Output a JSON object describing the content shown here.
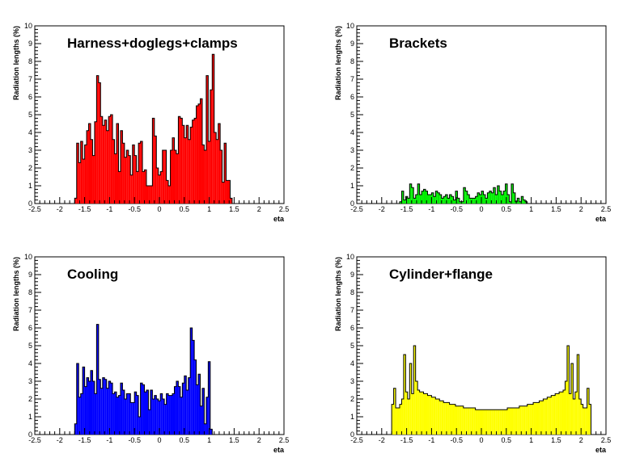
{
  "chart_data": [
    {
      "type": "bar",
      "title": "Harness+doglegs+clamps",
      "xlabel": "eta",
      "ylabel": "Radiation lengths (%)",
      "xlim": [
        -2.5,
        2.5
      ],
      "ylim": [
        0,
        10
      ],
      "x_ticks": [
        "-2.5",
        "-2",
        "-1.5",
        "-1",
        "-0.5",
        "0",
        "0.5",
        "1",
        "1.5",
        "2",
        "2.5"
      ],
      "y_ticks": [
        "0",
        "1",
        "2",
        "3",
        "4",
        "5",
        "6",
        "7",
        "8",
        "9",
        "10"
      ],
      "color": "#ff0000",
      "bin_start": -1.7,
      "bin_width": 0.04,
      "values": [
        0.3,
        3.4,
        2.3,
        3.5,
        2.5,
        3.3,
        4.1,
        4.5,
        3.6,
        2.7,
        4.6,
        7.2,
        6.8,
        4.9,
        4.4,
        4.7,
        4.1,
        4.9,
        5.0,
        3.6,
        2.8,
        4.5,
        1.8,
        4.1,
        3.4,
        2.6,
        3.0,
        2.7,
        1.6,
        3.3,
        2.7,
        1.8,
        3.4,
        3.5,
        1.8,
        1.9,
        1.0,
        1.0,
        1.0,
        4.8,
        3.8,
        2.0,
        1.6,
        1.8,
        3.0,
        3.0,
        1.3,
        1.0,
        3.0,
        3.7,
        3.0,
        2.8,
        4.9,
        4.8,
        4.4,
        3.7,
        4.4,
        3.6,
        4.3,
        4.7,
        4.8,
        5.5,
        5.6,
        5.9,
        3.3,
        3.0,
        7.2,
        3.5,
        6.4,
        8.4,
        4.0,
        3.6,
        4.5,
        3.0,
        1.2,
        3.4,
        1.3,
        1.3,
        0.3
      ]
    },
    {
      "type": "bar",
      "title": "Brackets",
      "xlabel": "eta",
      "ylabel": "Radiation lengths (%)",
      "xlim": [
        -2.5,
        2.5
      ],
      "ylim": [
        0,
        10
      ],
      "x_ticks": [
        "-2.5",
        "-2",
        "-1.5",
        "-1",
        "-0.5",
        "0",
        "0.5",
        "1",
        "1.5",
        "2",
        "2.5"
      ],
      "y_ticks": [
        "0",
        "1",
        "2",
        "3",
        "4",
        "5",
        "6",
        "7",
        "8",
        "9",
        "10"
      ],
      "color": "#00ee00",
      "bin_start": -1.64,
      "bin_width": 0.04,
      "values": [
        0.1,
        0.7,
        0.2,
        0.4,
        0.3,
        1.1,
        0.9,
        0.3,
        0.5,
        1.1,
        0.5,
        0.7,
        0.8,
        0.7,
        0.5,
        0.5,
        0.6,
        0.4,
        0.7,
        0.6,
        0.5,
        0.3,
        0.4,
        0.5,
        0.3,
        0.5,
        0.4,
        0.2,
        0.7,
        0.3,
        0.1,
        0.1,
        0.9,
        0.7,
        0.5,
        0.3,
        0.3,
        0.3,
        0.4,
        0.6,
        0.5,
        0.7,
        0.5,
        0.3,
        0.6,
        0.7,
        0.6,
        0.9,
        0.5,
        1.0,
        0.7,
        0.5,
        0.7,
        1.1,
        0.5,
        0.1,
        1.1,
        0.6,
        0.1,
        0.3,
        0.1,
        0.4,
        0.2,
        0.1
      ]
    },
    {
      "type": "bar",
      "title": "Cooling",
      "xlabel": "eta",
      "ylabel": "Radiation lengths (%)",
      "xlim": [
        -2.5,
        2.5
      ],
      "ylim": [
        0,
        10
      ],
      "x_ticks": [
        "-2.5",
        "-2",
        "-1.5",
        "-1",
        "-0.5",
        "0",
        "0.5",
        "1",
        "1.5",
        "2",
        "2.5"
      ],
      "y_ticks": [
        "0",
        "1",
        "2",
        "3",
        "4",
        "5",
        "6",
        "7",
        "8",
        "9",
        "10"
      ],
      "color": "#0000ff",
      "bin_start": -1.7,
      "bin_width": 0.04,
      "values": [
        0.6,
        4.0,
        2.1,
        2.3,
        3.8,
        2.7,
        3.2,
        3.0,
        3.6,
        3.0,
        2.3,
        6.2,
        3.1,
        2.6,
        3.2,
        3.1,
        2.6,
        3.0,
        2.9,
        2.3,
        2.4,
        2.1,
        2.2,
        2.9,
        2.5,
        2.0,
        2.3,
        2.3,
        1.8,
        1.8,
        2.4,
        2.2,
        1.0,
        2.9,
        2.8,
        2.4,
        2.5,
        1.4,
        2.5,
        2.0,
        2.2,
        2.0,
        1.9,
        2.3,
        2.0,
        1.7,
        2.3,
        2.2,
        2.2,
        2.3,
        2.7,
        3.0,
        2.7,
        2.1,
        2.9,
        3.3,
        2.5,
        3.2,
        6.0,
        5.3,
        4.2,
        2.8,
        3.4,
        1.6,
        2.6,
        0.6,
        2.1,
        4.1,
        0.3
      ]
    },
    {
      "type": "bar",
      "title": "Cylinder+flange",
      "xlabel": "eta",
      "ylabel": "Radiation lengths (%)",
      "xlim": [
        -2.5,
        2.5
      ],
      "ylim": [
        0,
        10
      ],
      "x_ticks": [
        "-2.5",
        "-2",
        "-1.5",
        "-1",
        "-0.5",
        "0",
        "0.5",
        "1",
        "1.5",
        "2",
        "2.5"
      ],
      "y_ticks": [
        "0",
        "1",
        "2",
        "3",
        "4",
        "5",
        "6",
        "7",
        "8",
        "9",
        "10"
      ],
      "color": "#ffff00",
      "bin_start": -1.8,
      "bin_width": 0.04,
      "values": [
        1.7,
        2.6,
        1.5,
        1.5,
        1.7,
        2.0,
        4.5,
        2.4,
        2.0,
        4.0,
        2.3,
        5.0,
        3.0,
        2.5,
        2.4,
        2.4,
        2.3,
        2.3,
        2.2,
        2.2,
        2.1,
        2.1,
        2.0,
        2.0,
        1.9,
        1.9,
        1.8,
        1.8,
        1.8,
        1.7,
        1.7,
        1.7,
        1.6,
        1.6,
        1.6,
        1.6,
        1.5,
        1.5,
        1.5,
        1.5,
        1.5,
        1.5,
        1.4,
        1.4,
        1.4,
        1.4,
        1.4,
        1.4,
        1.4,
        1.4,
        1.4,
        1.4,
        1.4,
        1.4,
        1.4,
        1.4,
        1.4,
        1.4,
        1.5,
        1.5,
        1.5,
        1.5,
        1.5,
        1.5,
        1.6,
        1.6,
        1.6,
        1.6,
        1.7,
        1.7,
        1.7,
        1.8,
        1.8,
        1.8,
        1.9,
        1.9,
        2.0,
        2.0,
        2.1,
        2.1,
        2.2,
        2.2,
        2.3,
        2.3,
        2.4,
        2.4,
        2.5,
        3.0,
        5.0,
        2.3,
        4.0,
        2.0,
        2.4,
        4.5,
        2.0,
        1.7,
        1.5,
        1.5,
        2.6,
        1.7
      ]
    }
  ]
}
